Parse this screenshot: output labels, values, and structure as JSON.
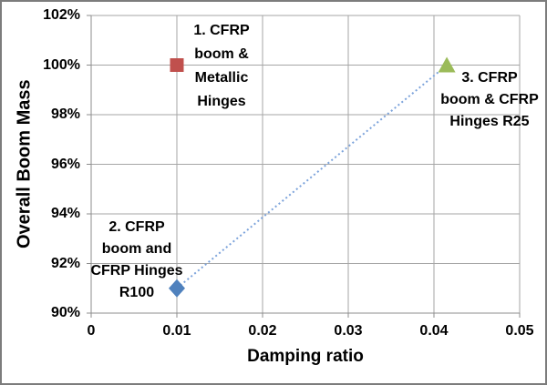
{
  "chart_data": {
    "type": "scatter",
    "title": "",
    "xlabel": "Damping ratio",
    "ylabel": "Overall Boom Mass",
    "xlim": [
      0,
      0.05
    ],
    "ylim": [
      0.9,
      1.02
    ],
    "grid": true,
    "legend": false,
    "x_ticks": [
      {
        "value": 0,
        "label": "0"
      },
      {
        "value": 0.01,
        "label": "0.01"
      },
      {
        "value": 0.02,
        "label": "0.02"
      },
      {
        "value": 0.03,
        "label": "0.03"
      },
      {
        "value": 0.04,
        "label": "0.04"
      },
      {
        "value": 0.05,
        "label": "0.05"
      }
    ],
    "y_ticks": [
      {
        "value": 0.9,
        "label": "90%"
      },
      {
        "value": 0.92,
        "label": "92%"
      },
      {
        "value": 0.94,
        "label": "94%"
      },
      {
        "value": 0.96,
        "label": "96%"
      },
      {
        "value": 0.98,
        "label": "98%"
      },
      {
        "value": 1.0,
        "label": "100%"
      },
      {
        "value": 1.02,
        "label": "102%"
      }
    ],
    "points": [
      {
        "name": "1. CFRP boom & Metallic Hinges",
        "x": 0.01,
        "y": 1.0,
        "marker": "square",
        "color": "#C0504D"
      },
      {
        "name": "2. CFRP boom and CFRP Hinges R100",
        "x": 0.01,
        "y": 0.91,
        "marker": "diamond",
        "color": "#4F81BD"
      },
      {
        "name": "3. CFRP boom & CFRP Hinges R25",
        "x": 0.0415,
        "y": 1.0,
        "marker": "triangle",
        "color": "#9BBB59"
      }
    ],
    "connector": {
      "from": "2. CFRP boom and CFRP Hinges R100",
      "to": "3. CFRP boom & CFRP Hinges R25",
      "x1": 0.01,
      "y1": 0.91,
      "x2": 0.0415,
      "y2": 1.0,
      "style": "dotted",
      "color": "#7CA3DB"
    }
  },
  "annotations": [
    {
      "text": "1. CFRP\nboom &\nMetallic\nHinges"
    },
    {
      "text": "2. CFRP\nboom and\nCFRP Hinges\nR100"
    },
    {
      "text": "3. CFRP\nboom & CFRP\nHinges R25"
    }
  ],
  "colors": {
    "grid": "#A6A6A6",
    "axis": "#8C8C8C",
    "text": "#000000",
    "background": "#FFFFFF",
    "border": "#7C7C7C",
    "series_red": "#C0504D",
    "series_blue": "#4F81BD",
    "series_green": "#9BBB59",
    "connector": "#7CA3DB"
  }
}
